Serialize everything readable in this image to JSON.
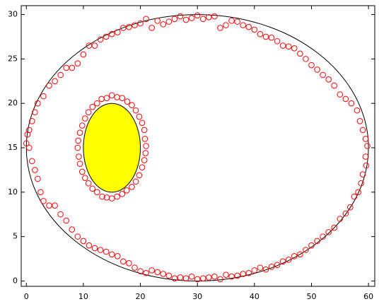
{
  "chart_data": {
    "type": "scatter",
    "x": [
      8,
      9,
      10,
      11,
      12,
      13,
      14,
      15,
      16,
      17,
      18,
      19,
      20,
      21,
      22,
      23,
      24,
      25,
      26,
      27,
      28,
      29,
      30,
      31,
      32,
      33,
      34,
      35,
      36,
      37,
      38,
      39,
      40,
      41,
      42,
      43,
      44,
      45,
      46,
      47,
      48,
      49,
      50,
      51,
      52,
      53,
      54,
      55,
      56,
      57,
      58,
      58.5,
      59,
      59.5,
      59.8,
      59.5,
      59.6,
      59,
      58.7,
      58.2,
      57.5,
      56.8,
      56,
      55,
      54,
      53,
      52,
      51,
      50,
      49,
      48,
      47,
      46,
      45,
      44,
      43,
      42,
      41,
      40,
      39,
      38,
      37,
      36,
      35,
      34,
      33,
      32,
      31,
      30,
      29,
      28,
      27,
      26,
      25,
      24,
      23,
      22,
      21,
      20,
      19,
      18,
      17,
      16,
      15,
      14,
      13,
      12,
      11,
      10,
      9,
      8,
      7,
      6,
      5,
      4,
      3,
      2.5,
      2,
      1.5,
      1,
      0.5,
      0,
      0.2,
      0.5,
      1,
      1.5,
      2,
      3,
      4,
      5,
      6,
      7,
      21,
      20.8,
      20.7,
      20.3,
      19.8,
      19.2,
      18.5,
      17.7,
      16.8,
      15.9,
      15,
      14.1,
      13.2,
      12.4,
      11.6,
      10.9,
      10.3,
      9.8,
      9.4,
      9.1,
      9,
      9.2,
      9.4,
      9.8,
      10.3,
      10.9,
      11.6,
      12.4,
      13.3,
      14.1,
      15,
      15.9,
      16.8,
      17.6,
      18.5,
      19.2,
      19.8,
      20.3,
      20.7,
      20.9
    ],
    "y": [
      24,
      24.5,
      25.5,
      26.5,
      26.5,
      27.2,
      27.5,
      27.8,
      28,
      28.5,
      28.6,
      28.8,
      29,
      29.5,
      28.5,
      29.3,
      28.9,
      29.2,
      29.5,
      29.8,
      29.4,
      29.6,
      29.9,
      29.5,
      29.7,
      29.8,
      28.5,
      28.8,
      29.3,
      29.2,
      28.8,
      28.6,
      28.3,
      27.8,
      27.5,
      27.4,
      27,
      26.5,
      26.4,
      26.2,
      25.6,
      25,
      24.3,
      23.8,
      23.2,
      22.7,
      22,
      21,
      20.5,
      20,
      19.2,
      18,
      17,
      16,
      15.2,
      14,
      13,
      12,
      11,
      10,
      9.5,
      8.3,
      7.6,
      7,
      6,
      5.5,
      5,
      4.5,
      4,
      3.5,
      3,
      2.8,
      2.4,
      2.2,
      1.8,
      1.6,
      1.3,
      1.5,
      1.2,
      0.9,
      0.8,
      0.6,
      0.5,
      0.7,
      0.2,
      0.5,
      0.4,
      0.3,
      0.2,
      0.5,
      0.3,
      0.4,
      0.3,
      0.6,
      0.8,
      1,
      1.2,
      0.9,
      1.1,
      1.5,
      2,
      2.2,
      2.8,
      3,
      3.3,
      3.5,
      3.7,
      4,
      4.5,
      5,
      5.8,
      6.8,
      7.5,
      8.5,
      8.5,
      9,
      10,
      11.5,
      12.5,
      13.5,
      15,
      15.5,
      16.5,
      17,
      18,
      19,
      20,
      20.8,
      22,
      22.5,
      23.2,
      24,
      15.2,
      16,
      17,
      17.8,
      18.5,
      19.2,
      19.8,
      20.2,
      20.6,
      20.7,
      20.9,
      20.6,
      20.5,
      20,
      19.6,
      19,
      18.3,
      17.5,
      16.7,
      15.8,
      15,
      14,
      13.2,
      12.3,
      11.6,
      11,
      10.4,
      10,
      9.5,
      9.4,
      9.3,
      9.5,
      9.8,
      10.2,
      10.6,
      11.2,
      11.9,
      12.8,
      13.6,
      14.4
    ],
    "color": "#ff0000",
    "ellipses": [
      {
        "cx": 30,
        "cy": 15,
        "rx": 30,
        "ry": 15,
        "fill": "none"
      },
      {
        "cx": 15,
        "cy": 15,
        "rx": 5,
        "ry": 5,
        "fill": "#ffff00"
      }
    ],
    "xlim": [
      -0.9,
      61.1
    ],
    "ylim": [
      -0.6,
      31
    ],
    "xticks": [
      0,
      10,
      20,
      30,
      40,
      50,
      60
    ],
    "yticks": [
      0,
      5,
      10,
      15,
      20,
      25,
      30
    ],
    "grid": false
  }
}
